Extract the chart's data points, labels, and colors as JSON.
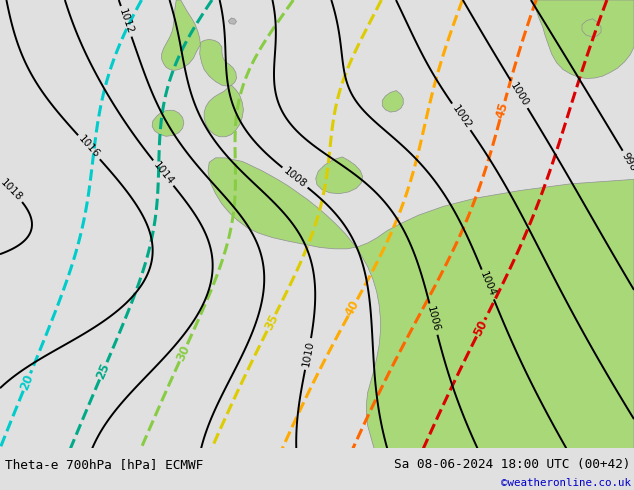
{
  "title_left": "Theta-e 700hPa [hPa] ECMWF",
  "title_right": "Sa 08-06-2024 18:00 UTC (00+42)",
  "credit": "©weatheronline.co.uk",
  "bg_gray": "#c8c8c8",
  "land_green": "#a8d878",
  "land_gray": "#b8b8b8",
  "sea_color": "#d0d0d0",
  "bar_bg": "#e0e0e0",
  "figsize": [
    6.34,
    4.9
  ],
  "dpi": 100,
  "cyan_color": "#00cccc",
  "teal_color": "#00aa88",
  "lgreen_color": "#88cc44",
  "yellow_color": "#ddcc00",
  "orange_color": "#ffaa00",
  "dorange_color": "#ff6600",
  "red_color": "#dd0000",
  "credit_color": "#0000cc"
}
